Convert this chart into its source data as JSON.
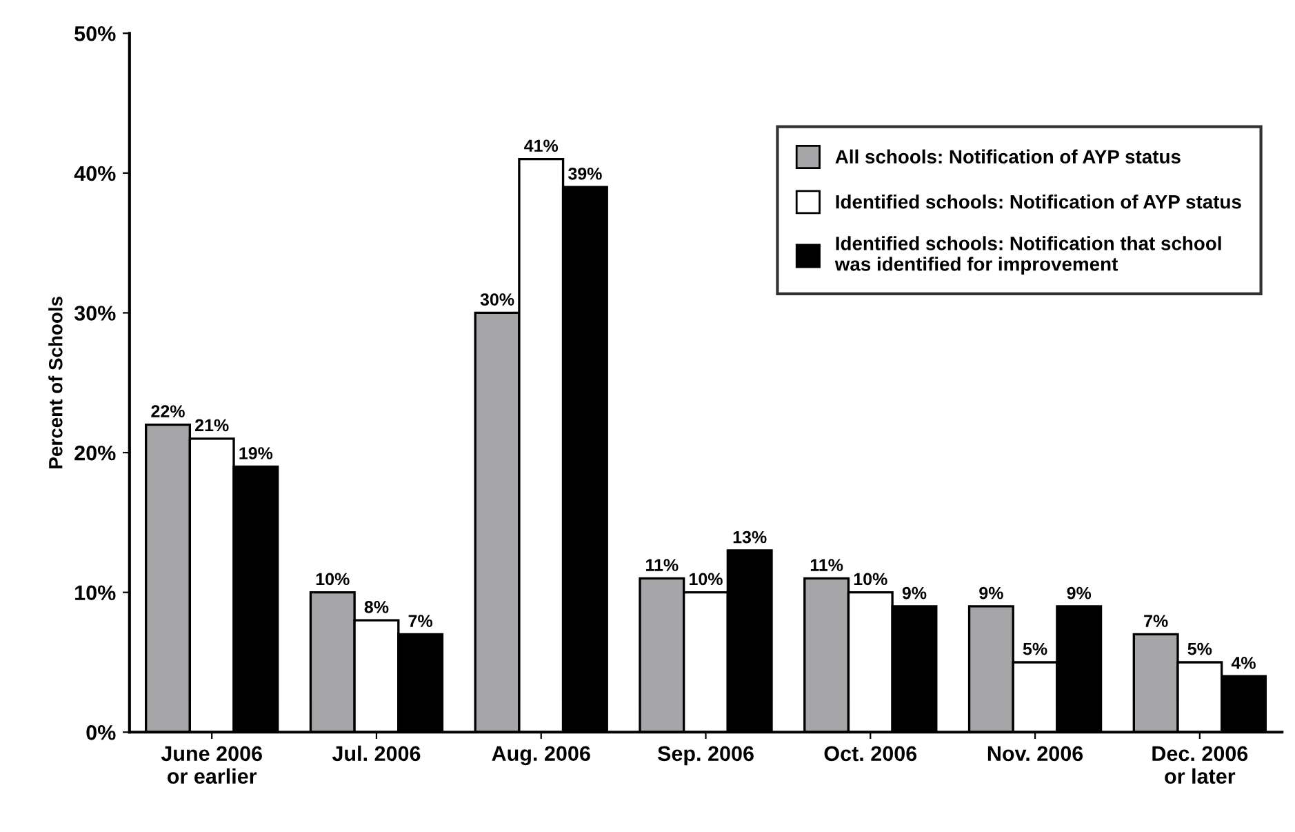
{
  "chart_data": {
    "type": "bar",
    "ylabel": "Percent of Schools",
    "categories": [
      "June 2006\nor earlier",
      "Jul. 2006",
      "Aug. 2006",
      "Sep. 2006",
      "Oct. 2006",
      "Nov. 2006",
      "Dec. 2006\nor later"
    ],
    "series": [
      {
        "name": "All schools: Notification of AYP status",
        "color": "#a6a6a8",
        "values": [
          22,
          10,
          30,
          11,
          11,
          9,
          7
        ]
      },
      {
        "name": "Identified schools: Notification of AYP status",
        "color": "#ffffff",
        "values": [
          21,
          8,
          41,
          10,
          10,
          5,
          5
        ]
      },
      {
        "name": "Identified schools: Notification that school\nwas identified for improvement",
        "color": "#000000",
        "values": [
          19,
          7,
          39,
          13,
          9,
          9,
          4
        ]
      }
    ],
    "ylim": [
      0,
      50
    ],
    "yticks": [
      {
        "value": 0,
        "label": "0%"
      },
      {
        "value": 10,
        "label": "10%"
      },
      {
        "value": 20,
        "label": "20%"
      },
      {
        "value": 30,
        "label": "30%"
      },
      {
        "value": 40,
        "label": "40%"
      },
      {
        "value": 50,
        "label": "50%"
      }
    ],
    "value_labels": [
      [
        "22%",
        "10%",
        "30%",
        "11%",
        "11%",
        "9%",
        "7%"
      ],
      [
        "21%",
        "8%",
        "41%",
        "10%",
        "10%",
        "5%",
        "5%"
      ],
      [
        "19%",
        "7%",
        "39%",
        "13%",
        "9%",
        "9%",
        "4%"
      ]
    ],
    "legend": "top right",
    "grid": false
  }
}
